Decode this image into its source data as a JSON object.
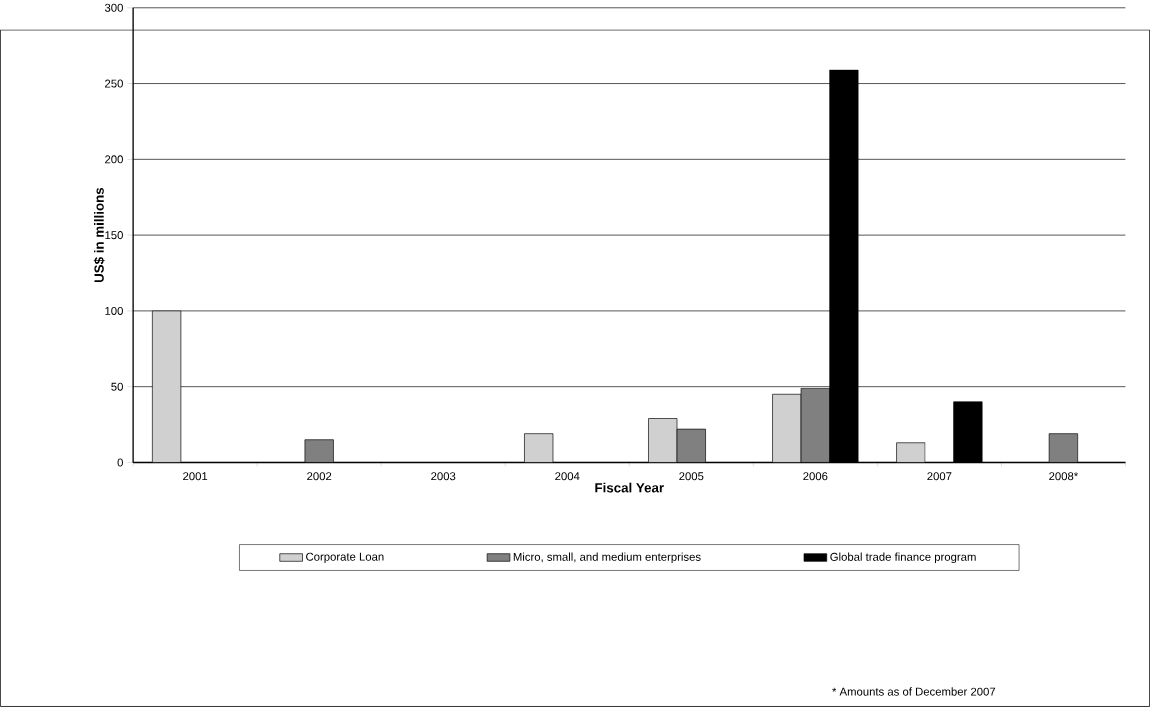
{
  "chart_data": {
    "type": "bar",
    "xlabel": "Fiscal Year",
    "ylabel": "US$ in millions",
    "categories": [
      "2001",
      "2002",
      "2003",
      "2004",
      "2005",
      "2006",
      "2007",
      "2008*"
    ],
    "series": [
      {
        "name": "Corporate Loan",
        "color": "#d0d0d0",
        "values": [
          100,
          null,
          null,
          19,
          29,
          45,
          13,
          null
        ]
      },
      {
        "name": "Micro, small, and medium enterprises",
        "color": "#808080",
        "values": [
          null,
          15,
          null,
          null,
          22,
          49,
          null,
          19
        ]
      },
      {
        "name": "Global trade finance program",
        "color": "#000000",
        "values": [
          null,
          null,
          null,
          null,
          null,
          259,
          40,
          null
        ]
      }
    ],
    "ylim": [
      0,
      300
    ],
    "yticks": [
      0,
      50,
      100,
      150,
      200,
      250,
      300
    ],
    "grid": "y",
    "legend": "bottom",
    "annotations": [
      "* Amounts as of December 2007"
    ]
  }
}
